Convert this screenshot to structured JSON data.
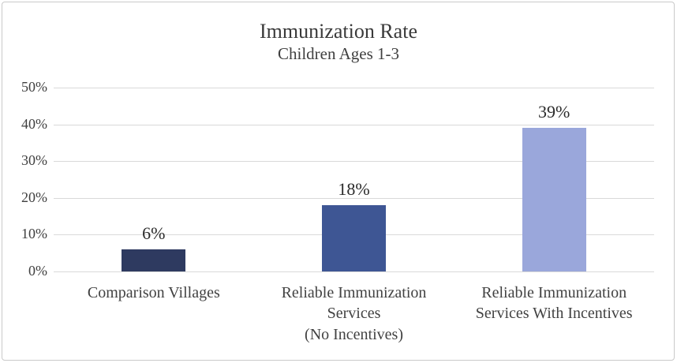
{
  "chart": {
    "title": "Immunization Rate",
    "subtitle": "Children Ages 1-3"
  },
  "colors": {
    "gridline": "#d9d9d9",
    "frame_border": "#c9c9c9",
    "title_text": "#3a3a3a",
    "axis_text": "#404040",
    "value_label_text": "#2b2b2b"
  },
  "chart_data": {
    "type": "bar",
    "title": "Immunization Rate",
    "subtitle": "Children Ages 1-3",
    "categories": [
      "Comparison Villages",
      "Reliable Immunization\nServices\n(No Incentives)",
      "Reliable Immunization\nServices With Incentives"
    ],
    "values": [
      6,
      18,
      39
    ],
    "value_labels": [
      "6%",
      "18%",
      "39%"
    ],
    "bar_colors": [
      "#2e3a60",
      "#3e5694",
      "#9aa7db"
    ],
    "xlabel": "",
    "ylabel": "",
    "ylim": [
      0,
      50
    ],
    "ytick_labels_top_to_bottom": [
      "50%",
      "40%",
      "30%",
      "20%",
      "10%",
      "0%"
    ],
    "grid": true,
    "legend": false
  }
}
